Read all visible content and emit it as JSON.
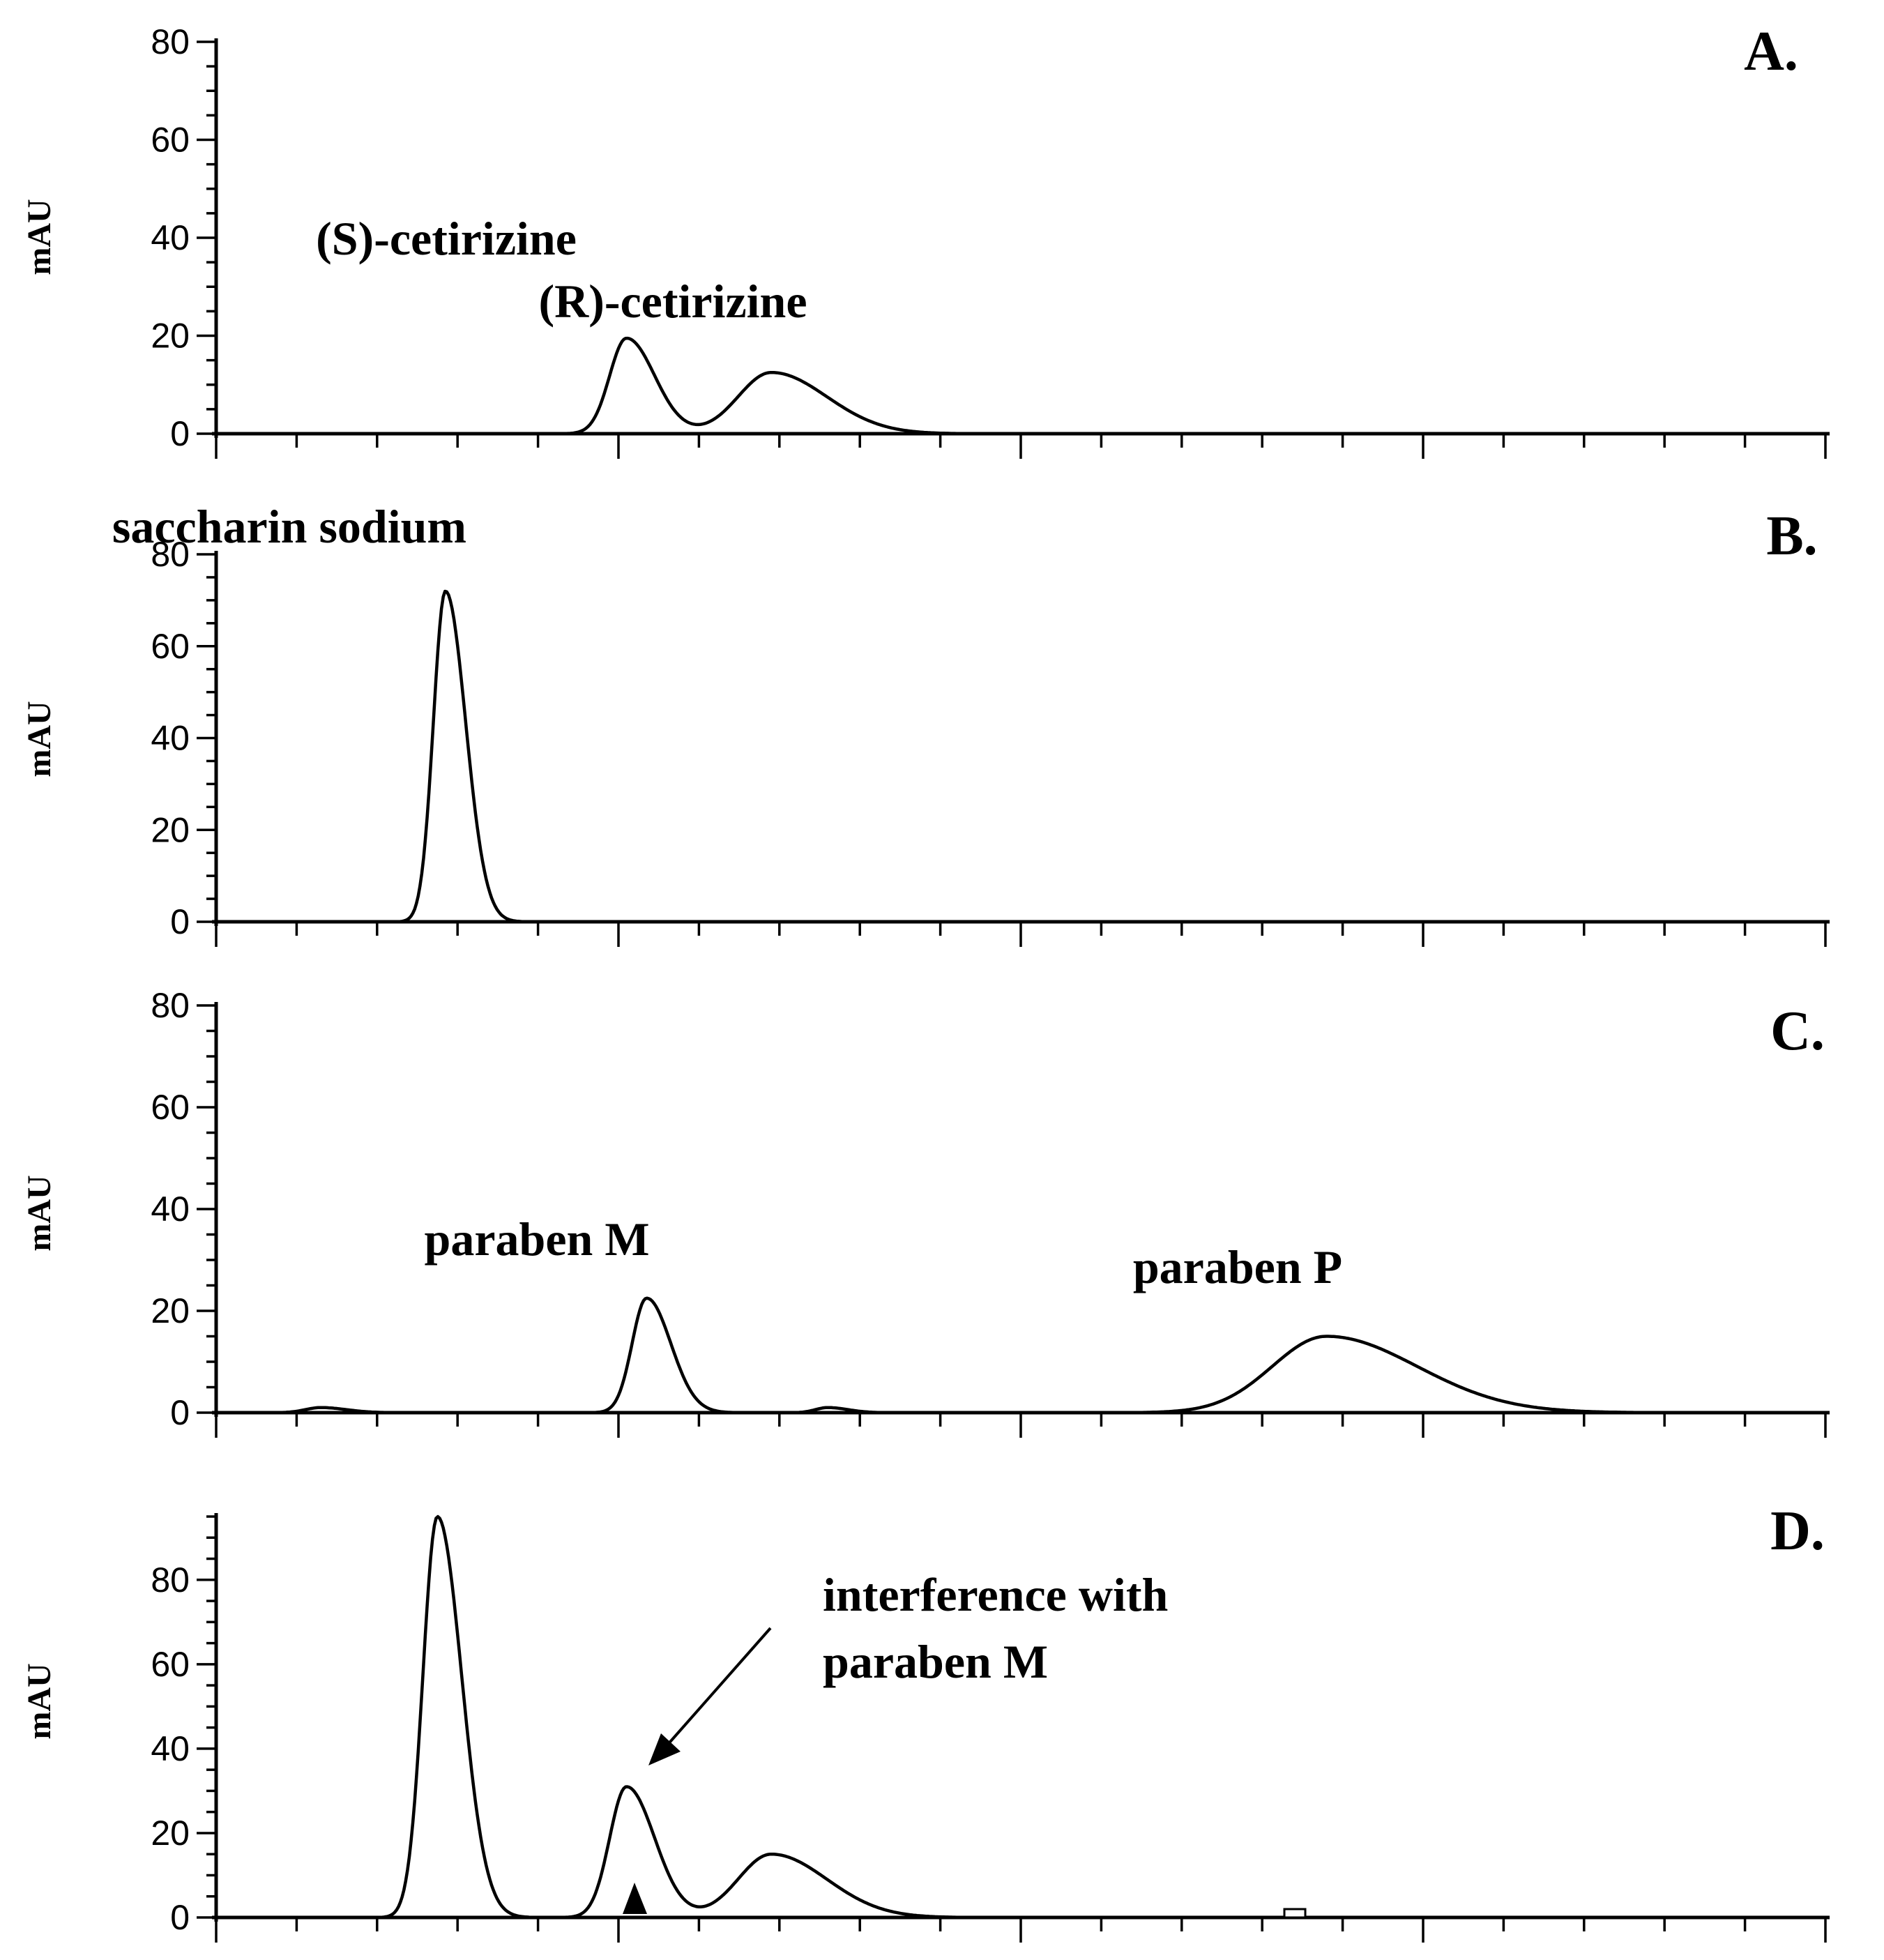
{
  "chart_data": [
    {
      "type": "line",
      "panel": "A.",
      "ylabel": "mAU",
      "ylim": [
        0,
        80
      ],
      "yticks": [
        0,
        20,
        40,
        60,
        80
      ],
      "xlim": [
        0,
        20
      ],
      "xticks_labeled": false,
      "peaks": [
        {
          "x": 5.1,
          "height": 19.5,
          "width": 0.28
        },
        {
          "x": 6.9,
          "height": 12.5,
          "width": 0.55
        }
      ],
      "annotations": [
        {
          "text": "(S)-cetirizine"
        },
        {
          "text": "(R)-cetirizine"
        }
      ]
    },
    {
      "type": "line",
      "panel": "B.",
      "ylabel": "mAU",
      "ylim": [
        0,
        80
      ],
      "yticks": [
        0,
        20,
        40,
        60,
        80
      ],
      "xlim": [
        0,
        20
      ],
      "xticks_labeled": false,
      "peaks": [
        {
          "x": 2.85,
          "height": 72,
          "width": 0.2
        }
      ],
      "annotations": [
        {
          "text": "saccharin sodium"
        }
      ]
    },
    {
      "type": "line",
      "panel": "C.",
      "ylabel": "mAU",
      "ylim": [
        0,
        80
      ],
      "yticks": [
        0,
        20,
        40,
        60,
        80
      ],
      "xlim": [
        0,
        20
      ],
      "xticks_labeled": false,
      "peaks": [
        {
          "x": 1.3,
          "height": 1,
          "width": 0.25
        },
        {
          "x": 5.35,
          "height": 22.5,
          "width": 0.24
        },
        {
          "x": 7.6,
          "height": 1,
          "width": 0.2
        },
        {
          "x": 13.8,
          "height": 15,
          "width": 0.9
        }
      ],
      "annotations": [
        {
          "text": "paraben M"
        },
        {
          "text": "paraben P"
        }
      ]
    },
    {
      "type": "line",
      "panel": "D.",
      "ylabel": "mAU",
      "ylim": [
        0,
        95
      ],
      "yticks": [
        0,
        20,
        40,
        60,
        80
      ],
      "xlim": [
        0,
        20
      ],
      "xticks_labeled": false,
      "peaks": [
        {
          "x": 2.75,
          "height": 95,
          "width": 0.24
        },
        {
          "x": 5.1,
          "height": 31,
          "width": 0.28
        },
        {
          "x": 6.9,
          "height": 15,
          "width": 0.55
        }
      ],
      "annotations": [
        {
          "text": "interference with\nparaben M",
          "lines": [
            "interference with",
            "paraben M"
          ]
        }
      ]
    }
  ]
}
